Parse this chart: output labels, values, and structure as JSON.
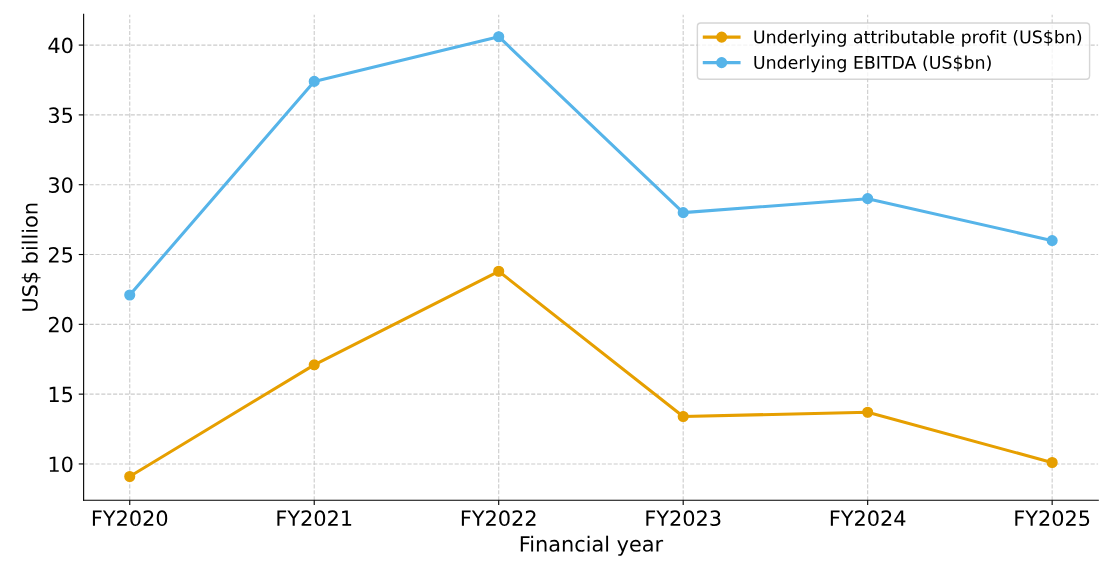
{
  "chart_data": {
    "type": "line",
    "xlabel": "Financial year",
    "ylabel": "US$ billion",
    "categories": [
      "FY2020",
      "FY2021",
      "FY2022",
      "FY2023",
      "FY2024",
      "FY2025"
    ],
    "series": [
      {
        "name": "Underlying attributable profit (US$bn)",
        "color": "#e69f00",
        "values": [
          9.1,
          17.1,
          23.8,
          13.4,
          13.7,
          10.1
        ]
      },
      {
        "name": "Underlying EBITDA (US$bn)",
        "color": "#56b4e9",
        "values": [
          22.1,
          37.4,
          40.6,
          28.0,
          29.0,
          26.0
        ]
      }
    ],
    "ylim": [
      7.4,
      42.2
    ],
    "yticks": [
      10,
      15,
      20,
      25,
      30,
      35,
      40
    ],
    "grid": true,
    "legend": "top right",
    "marker": "circle",
    "line_style": "solid"
  }
}
